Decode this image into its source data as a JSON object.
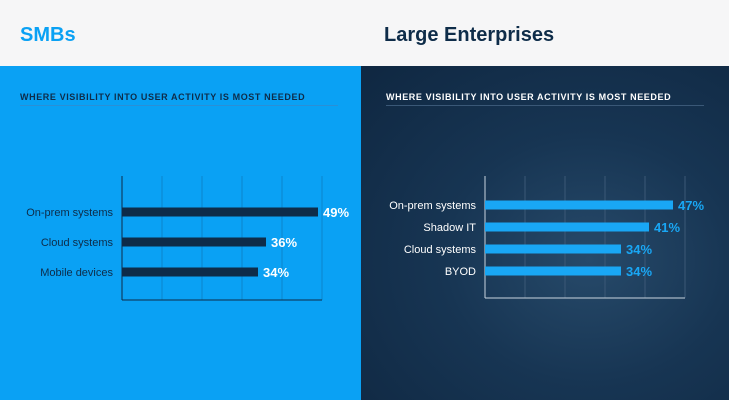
{
  "colors": {
    "left_panel_bg": "#0aa1f4",
    "left_bar": "#0e2c49",
    "left_text": "#0e2c49",
    "left_value": "#ffffff",
    "left_title": "#0aa1f4",
    "right_bar": "#19a7f5",
    "right_text": "#ffffff",
    "right_value": "#19a7f5",
    "right_title": "#0e2c49"
  },
  "header": {
    "left_title": "SMBs",
    "right_title": "Large Enterprises"
  },
  "chart_data": [
    {
      "type": "bar",
      "orientation": "horizontal",
      "subtitle": "WHERE VISIBILITY INTO USER ACTIVITY IS MOST NEEDED",
      "categories": [
        "On-prem systems",
        "Cloud systems",
        "Mobile devices"
      ],
      "values": [
        49,
        36,
        34
      ],
      "value_labels": [
        "49%",
        "36%",
        "34%"
      ],
      "xlim": [
        0,
        50
      ],
      "grid": true
    },
    {
      "type": "bar",
      "orientation": "horizontal",
      "subtitle": "WHERE VISIBILITY INTO USER ACTIVITY IS MOST NEEDED",
      "categories": [
        "On-prem systems",
        "Shadow IT",
        "Cloud systems",
        "BYOD"
      ],
      "values": [
        47,
        41,
        34,
        34
      ],
      "value_labels": [
        "47%",
        "41%",
        "34%",
        "34%"
      ],
      "xlim": [
        0,
        50
      ],
      "grid": true
    }
  ]
}
